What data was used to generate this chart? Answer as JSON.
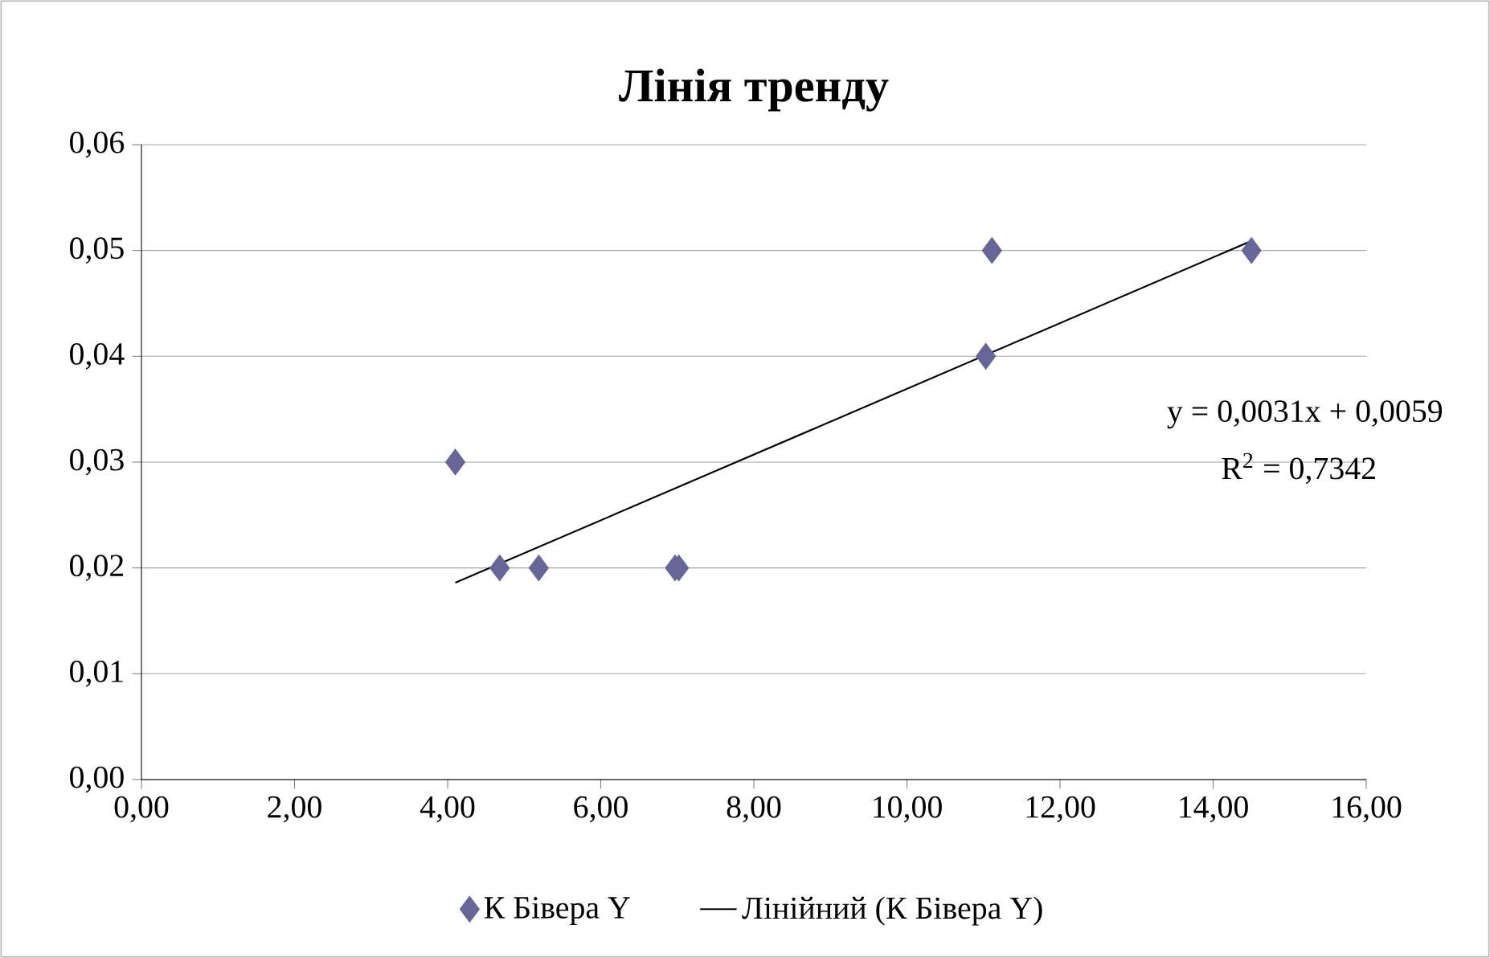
{
  "chart_data": {
    "type": "scatter",
    "title": "Лінія тренду",
    "annotations": [
      "y = 0,0031x + 0,0059",
      "R$^{2}$ = 0,7342"
    ],
    "series": [
      {
        "name": "К Бівера Y",
        "color": "#666699",
        "marker": "diamond",
        "x": [
          4.1,
          4.68,
          5.19,
          6.97,
          7.02,
          11.03,
          11.11,
          14.5
        ],
        "values": [
          0.03,
          0.02,
          0.02,
          0.02,
          0.02,
          0.04,
          0.05,
          0.05
        ]
      },
      {
        "name": "Лінійний (К Бівера Y)",
        "color": "#000000",
        "type": "line",
        "marker": "none",
        "x": [
          4.1,
          14.5
        ],
        "values": [
          0.0186,
          0.0509
        ]
      }
    ],
    "xlim": [
      0,
      16
    ],
    "xticks": [
      {
        "value": 0,
        "label": "0,00"
      },
      {
        "value": 2,
        "label": "2,00"
      },
      {
        "value": 4,
        "label": "4,00"
      },
      {
        "value": 6,
        "label": "6,00"
      },
      {
        "value": 8,
        "label": "8,00"
      },
      {
        "value": 10,
        "label": "10,00"
      },
      {
        "value": 12,
        "label": "12,00"
      },
      {
        "value": 14,
        "label": "14,00"
      },
      {
        "value": 16,
        "label": "16,00"
      }
    ],
    "ylim": [
      0,
      0.06
    ],
    "yticks": [
      {
        "value": 0,
        "label": "0,00"
      },
      {
        "value": 0.01,
        "label": "0,01"
      },
      {
        "value": 0.02,
        "label": "0,02"
      },
      {
        "value": 0.03,
        "label": "0,03"
      },
      {
        "value": 0.04,
        "label": "0,04"
      },
      {
        "value": 0.05,
        "label": "0,05"
      },
      {
        "value": 0.06,
        "label": "0,06"
      }
    ],
    "grid": "y",
    "legend": "bottom"
  }
}
